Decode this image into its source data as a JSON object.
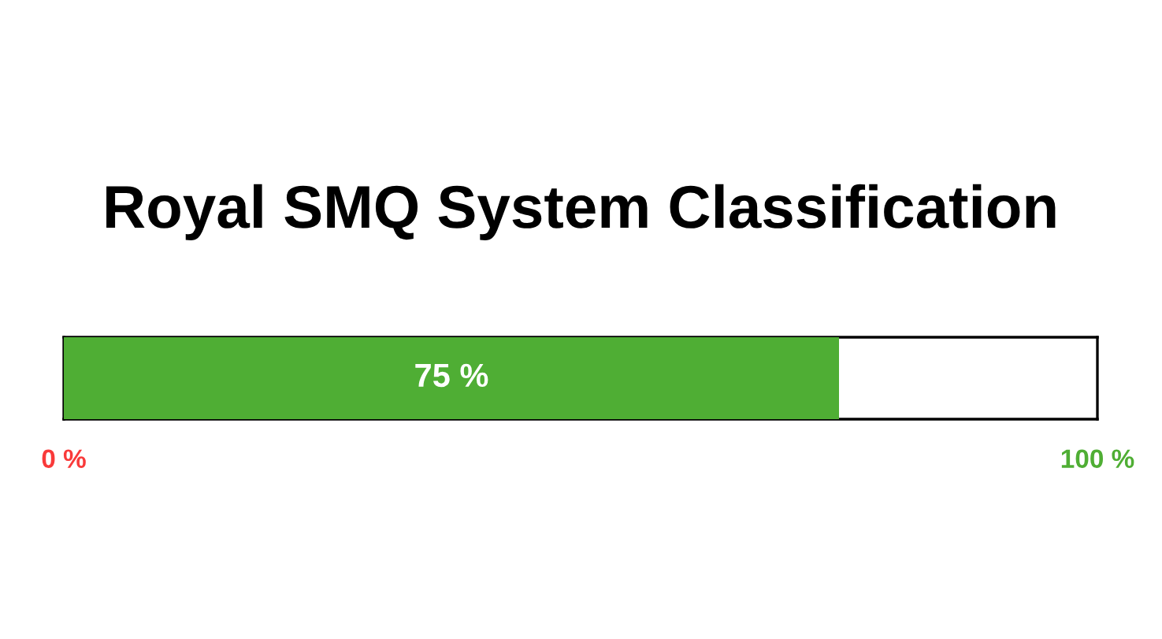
{
  "chart_data": {
    "type": "bar",
    "orientation": "horizontal",
    "title": "Royal SMQ System Classification",
    "categories": [
      null
    ],
    "values": [
      75
    ],
    "color": "#4fae34",
    "value_labels": [
      "75 %"
    ],
    "xlim": [
      0,
      100
    ],
    "xticks": [
      {
        "value": 0,
        "label": "0 %"
      },
      {
        "value": 100,
        "label": "100 %"
      }
    ],
    "tick_labels": "x"
  }
}
